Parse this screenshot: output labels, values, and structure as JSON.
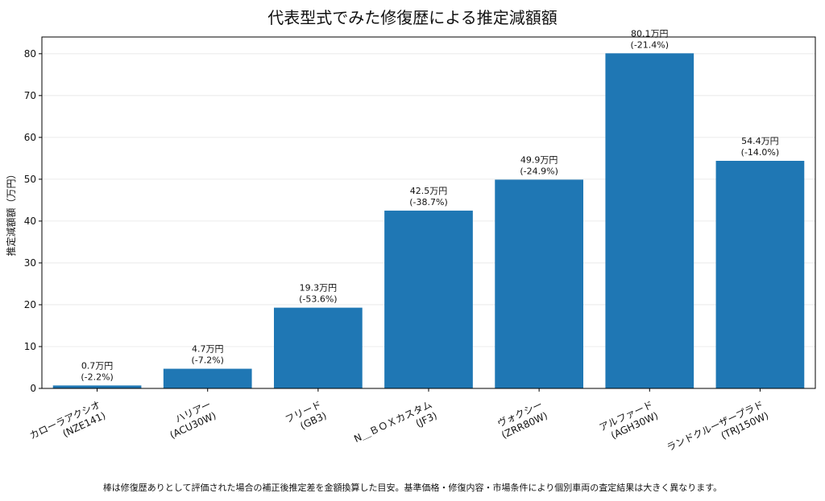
{
  "chart_data": {
    "type": "bar",
    "title": "代表型式でみた修復歴による推定減額額",
    "ylabel": "推定減額額（万円）",
    "xlabel": "",
    "ylim": [
      0,
      84
    ],
    "yticks": [
      0,
      10,
      20,
      30,
      40,
      50,
      60,
      70,
      80
    ],
    "grid": "y",
    "color": "#1f77b4",
    "categories": [
      [
        "カローラアクシオ",
        "(NZE141)"
      ],
      [
        "ハリアー",
        "(ACU30W)"
      ],
      [
        "フリード",
        "(GB3)"
      ],
      [
        "N＿ＢＯＸカスタム",
        "(JF3)"
      ],
      [
        "ヴォクシー",
        "(ZRR80W)"
      ],
      [
        "アルファード",
        "(AGH30W)"
      ],
      [
        "ランドクルーザープラド",
        "(TRJ150W)"
      ]
    ],
    "values": [
      0.7,
      4.7,
      19.3,
      42.5,
      49.9,
      80.1,
      54.4
    ],
    "data_labels": [
      [
        "0.7万円",
        "(-2.2%)"
      ],
      [
        "4.7万円",
        "(-7.2%)"
      ],
      [
        "19.3万円",
        "(-53.6%)"
      ],
      [
        "42.5万円",
        "(-38.7%)"
      ],
      [
        "49.9万円",
        "(-24.9%)"
      ],
      [
        "80.1万円",
        "(-21.4%)"
      ],
      [
        "54.4万円",
        "(-14.0%)"
      ]
    ]
  },
  "footnote": "棒は修復歴ありとして評価された場合の補正後推定差を金額換算した目安。基準価格・修復内容・市場条件により個別車両の査定結果は大きく異なります。"
}
